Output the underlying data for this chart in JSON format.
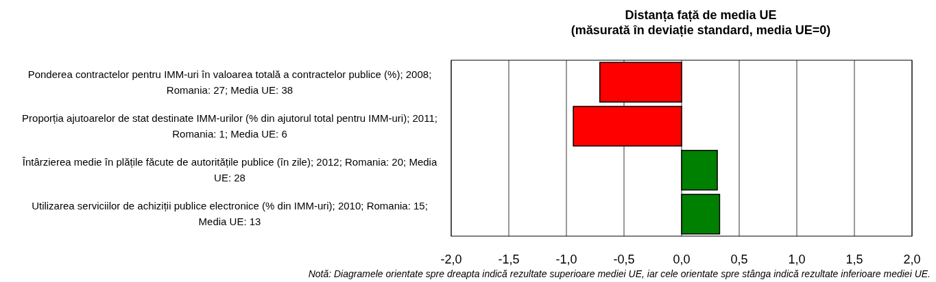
{
  "chart_data": {
    "type": "bar",
    "orientation": "horizontal",
    "title": "Distanța față de media UE\n(măsurată în deviație standard, media UE=0)",
    "categories": [
      "Ponderea contractelor pentru IMM-uri în valoarea totală a contractelor publice (%); 2008; Romania: 27; Media UE: 38",
      "Proporția ajutoarelor de stat destinate IMM-urilor (% din ajutorul total pentru IMM-uri); 2011; Romania: 1; Media UE: 6",
      "Întârzierea medie în plățile făcute de autoritățile publice (în zile); 2012; Romania: 20; Media UE: 28",
      "Utilizarea serviciilor de achiziții publice electronice (% din IMM-uri); 2010; Romania: 15; Media UE: 13"
    ],
    "values": [
      -0.71,
      -0.94,
      0.31,
      0.33
    ],
    "colors": [
      "#ff0000",
      "#ff0000",
      "#008000",
      "#008000"
    ],
    "xlim": [
      -2,
      2
    ],
    "xticks": [
      {
        "value": -2,
        "label": "-2,0"
      },
      {
        "value": -1.5,
        "label": "-1,5"
      },
      {
        "value": -1,
        "label": "-1,0"
      },
      {
        "value": -0.5,
        "label": "-0,5"
      },
      {
        "value": 0,
        "label": "0,0"
      },
      {
        "value": 0.5,
        "label": "0,5"
      },
      {
        "value": 1,
        "label": "1,0"
      },
      {
        "value": 1.5,
        "label": "1,5"
      },
      {
        "value": 2,
        "label": "2,0"
      }
    ],
    "grid": "x",
    "annotations": [
      "Notă: Diagramele orientate spre dreapta indică rezultate superioare mediei UE, iar cele orientate spre stânga indică rezultate inferioare mediei UE."
    ]
  }
}
